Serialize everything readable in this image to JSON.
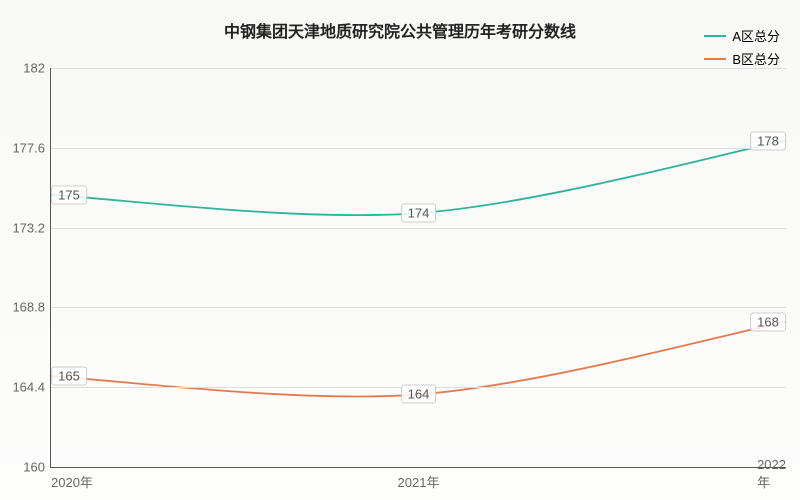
{
  "chart": {
    "type": "line",
    "title": "中钢集团天津地质研究院公共管理历年考研分数线",
    "title_fontsize": 18,
    "background_gradient": [
      "#f8f8f6",
      "#fdfdfc"
    ],
    "grid_color": "#dddddd",
    "axis_color": "#555555",
    "tick_color": "#666666",
    "tick_fontsize": 13,
    "xlim": [
      0,
      2
    ],
    "ylim": [
      160,
      182
    ],
    "yticks": [
      160,
      164.4,
      168.8,
      173.2,
      177.6,
      182
    ],
    "x_categories": [
      "2020年",
      "2021年",
      "2022年"
    ],
    "series": [
      {
        "name": "A区总分",
        "color": "#2fb39a",
        "line_width": 1.8,
        "values": [
          175,
          174,
          178
        ],
        "smooth": true
      },
      {
        "name": "B区总分",
        "color": "#e67a4f",
        "line_width": 1.8,
        "values": [
          165,
          164,
          168
        ],
        "smooth": true
      }
    ],
    "legend": {
      "position": "top-right",
      "fontsize": 13
    },
    "label_style": {
      "bg": "rgba(255,255,255,0.85)",
      "border": "#cccccc",
      "fontsize": 13,
      "color": "#555555"
    }
  }
}
